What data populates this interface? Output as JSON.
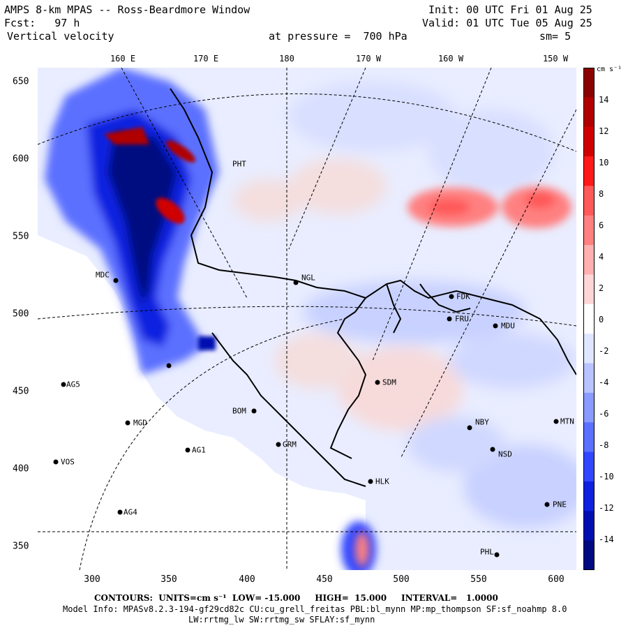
{
  "header": {
    "title": "AMPS 8-km MPAS -- Ross-Beardmore Window",
    "fcst": "Fcst:   97 h",
    "field": "Vertical velocity",
    "init": "Init: 00 UTC Fri 01 Aug 25",
    "valid": "Valid: 01 UTC Tue 05 Aug 25",
    "pressure": "at pressure =  700 hPa",
    "smooth": "sm= 5"
  },
  "longitudes": [
    "160 E",
    "170 E",
    "180",
    "170 W",
    "160 W",
    "150 W"
  ],
  "axes": {
    "y_ticks": [
      "650",
      "600",
      "550",
      "500",
      "450",
      "400",
      "350"
    ],
    "x_ticks": [
      "300",
      "350",
      "400",
      "450",
      "500",
      "550",
      "600"
    ]
  },
  "colorbar": {
    "unit": "cm s⁻¹",
    "labels": [
      "14",
      "12",
      "10",
      "8",
      "6",
      "4",
      "2",
      "0",
      "-2",
      "-4",
      "-6",
      "-8",
      "-10",
      "-12",
      "-14"
    ],
    "colors": [
      "#8b0000",
      "#b00000",
      "#d00000",
      "#ff1a1a",
      "#ff5959",
      "#ff8080",
      "#ffb0b0",
      "#ffd6d6",
      "#ffffff",
      "#dfe6ff",
      "#b8c4ff",
      "#8a9bff",
      "#5b70ff",
      "#3346ff",
      "#1020e0",
      "#0010b0",
      "#000a80"
    ]
  },
  "stations": [
    {
      "name": "MDC"
    },
    {
      "name": "NGL"
    },
    {
      "name": "FDK"
    },
    {
      "name": "FRU"
    },
    {
      "name": "MDU"
    },
    {
      "name": "SDM"
    },
    {
      "name": "AG5"
    },
    {
      "name": "MGD"
    },
    {
      "name": "AG1"
    },
    {
      "name": "VOS"
    },
    {
      "name": "AG4"
    },
    {
      "name": "BOM"
    },
    {
      "name": "GRM"
    },
    {
      "name": "NBY"
    },
    {
      "name": "NSD"
    },
    {
      "name": "PNE"
    },
    {
      "name": "PHL"
    },
    {
      "name": "MTN"
    },
    {
      "name": "HLK"
    },
    {
      "name": "PHT"
    }
  ],
  "footer": {
    "contours": "CONTOURS:  UNITS=cm s⁻¹  LOW= -15.000     HIGH=  15.000     INTERVAL=   1.0000",
    "model": "Model Info: MPASv8.2.3-194-gf29cd82c CU:cu_grell_freitas PBL:bl_mynn MP:mp_thompson SF:sf_noahmp 8.0",
    "physics": "LW:rrtmg_lw SW:rrtmg_sw SFLAY:sf_mynn"
  }
}
